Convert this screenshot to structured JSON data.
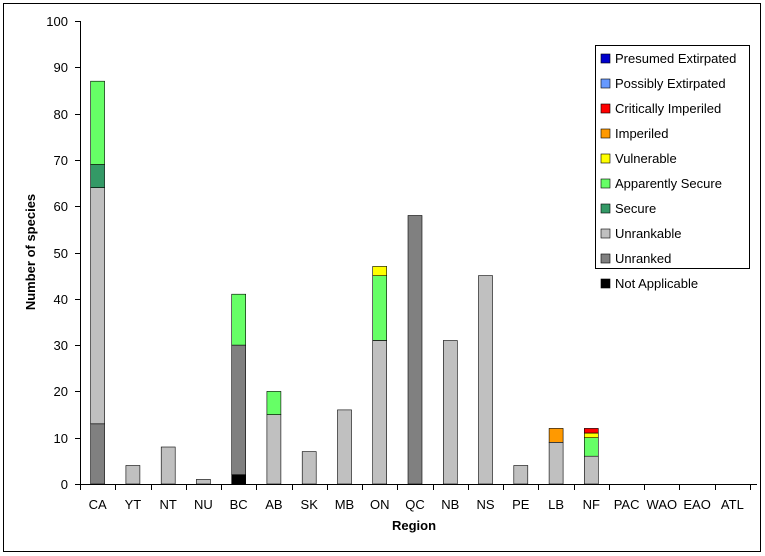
{
  "chart_data": {
    "type": "bar",
    "stacked": true,
    "title": "",
    "xlabel": "Region",
    "ylabel": "Number of species",
    "ylim": [
      0,
      100
    ],
    "yticks": [
      0,
      10,
      20,
      30,
      40,
      50,
      60,
      70,
      80,
      90,
      100
    ],
    "grid": false,
    "legend_position": "top-right",
    "categories": [
      "CA",
      "YT",
      "NT",
      "NU",
      "BC",
      "AB",
      "SK",
      "MB",
      "ON",
      "QC",
      "NB",
      "NS",
      "PE",
      "LB",
      "NF",
      "PAC",
      "WAO",
      "EAO",
      "ATL"
    ],
    "series": [
      {
        "name": "Not Applicable",
        "color": "#000000",
        "values": [
          0,
          0,
          0,
          0,
          2,
          0,
          0,
          0,
          0,
          0,
          0,
          0,
          0,
          0,
          0,
          0,
          0,
          0,
          0
        ]
      },
      {
        "name": "Unranked",
        "color": "#808080",
        "values": [
          13,
          0,
          0,
          0,
          28,
          0,
          0,
          0,
          0,
          58,
          0,
          0,
          0,
          0,
          0,
          0,
          0,
          0,
          0
        ]
      },
      {
        "name": "Unrankable",
        "color": "#c0c0c0",
        "values": [
          51,
          4,
          8,
          1,
          0,
          15,
          7,
          16,
          31,
          0,
          31,
          45,
          4,
          9,
          6,
          0,
          0,
          0,
          0
        ]
      },
      {
        "name": "Secure",
        "color": "#339966",
        "values": [
          5,
          0,
          0,
          0,
          0,
          0,
          0,
          0,
          0,
          0,
          0,
          0,
          0,
          0,
          0,
          0,
          0,
          0,
          0
        ]
      },
      {
        "name": "Apparently Secure",
        "color": "#66ff66",
        "values": [
          18,
          0,
          0,
          0,
          11,
          5,
          0,
          0,
          14,
          0,
          0,
          0,
          0,
          0,
          4,
          0,
          0,
          0,
          0
        ]
      },
      {
        "name": "Vulnerable",
        "color": "#ffff00",
        "values": [
          0,
          0,
          0,
          0,
          0,
          0,
          0,
          0,
          2,
          0,
          0,
          0,
          0,
          0,
          1,
          0,
          0,
          0,
          0
        ]
      },
      {
        "name": "Imperiled",
        "color": "#ff9900",
        "values": [
          0,
          0,
          0,
          0,
          0,
          0,
          0,
          0,
          0,
          0,
          0,
          0,
          0,
          3,
          0,
          0,
          0,
          0,
          0
        ]
      },
      {
        "name": "Critically Imperiled",
        "color": "#ff0000",
        "values": [
          0,
          0,
          0,
          0,
          0,
          0,
          0,
          0,
          0,
          0,
          0,
          0,
          0,
          0,
          1,
          0,
          0,
          0,
          0
        ]
      },
      {
        "name": "Possibly Extirpated",
        "color": "#6699ff",
        "values": [
          0,
          0,
          0,
          0,
          0,
          0,
          0,
          0,
          0,
          0,
          0,
          0,
          0,
          0,
          0,
          0,
          0,
          0,
          0
        ]
      },
      {
        "name": "Presumed Extirpated",
        "color": "#0000cc",
        "values": [
          0,
          0,
          0,
          0,
          0,
          0,
          0,
          0,
          0,
          0,
          0,
          0,
          0,
          0,
          0,
          0,
          0,
          0,
          0
        ]
      }
    ]
  }
}
